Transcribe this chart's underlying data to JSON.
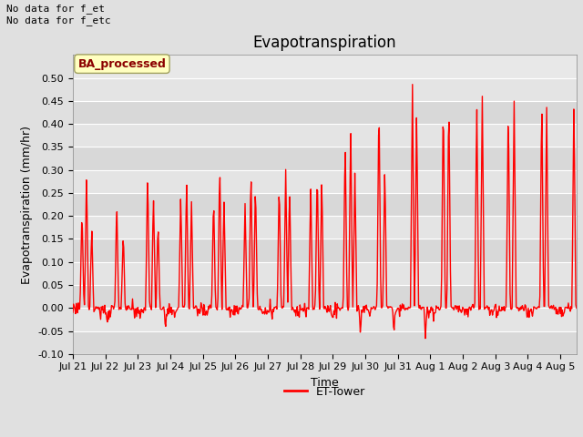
{
  "title": "Evapotranspiration",
  "xlabel": "Time",
  "ylabel": "Evapotranspiration (mm/hr)",
  "ylim": [
    -0.1,
    0.55
  ],
  "yticks": [
    -0.1,
    -0.05,
    0.0,
    0.05,
    0.1,
    0.15,
    0.2,
    0.25,
    0.3,
    0.35,
    0.4,
    0.45,
    0.5
  ],
  "line_color": "red",
  "line_width": 1.0,
  "fig_bg_color": "#e0e0e0",
  "plot_bg_color": "#e8e8e8",
  "band_colors": [
    "#d8d8d8",
    "#e4e4e4"
  ],
  "annotation_top_left": "No data for f_et\nNo data for f_etc",
  "box_label": "BA_processed",
  "legend_label": "ET-Tower",
  "title_fontsize": 12,
  "label_fontsize": 9,
  "tick_fontsize": 8,
  "x_tick_labels": [
    "Jul 21",
    "Jul 22",
    "Jul 23",
    "Jul 24",
    "Jul 25",
    "Jul 26",
    "Jul 27",
    "Jul 28",
    "Jul 29",
    "Jul 30",
    "Jul 31",
    "Aug 1",
    "Aug 2",
    "Aug 3",
    "Aug 4",
    "Aug 5"
  ],
  "figsize": [
    6.4,
    4.8
  ],
  "dpi": 100
}
